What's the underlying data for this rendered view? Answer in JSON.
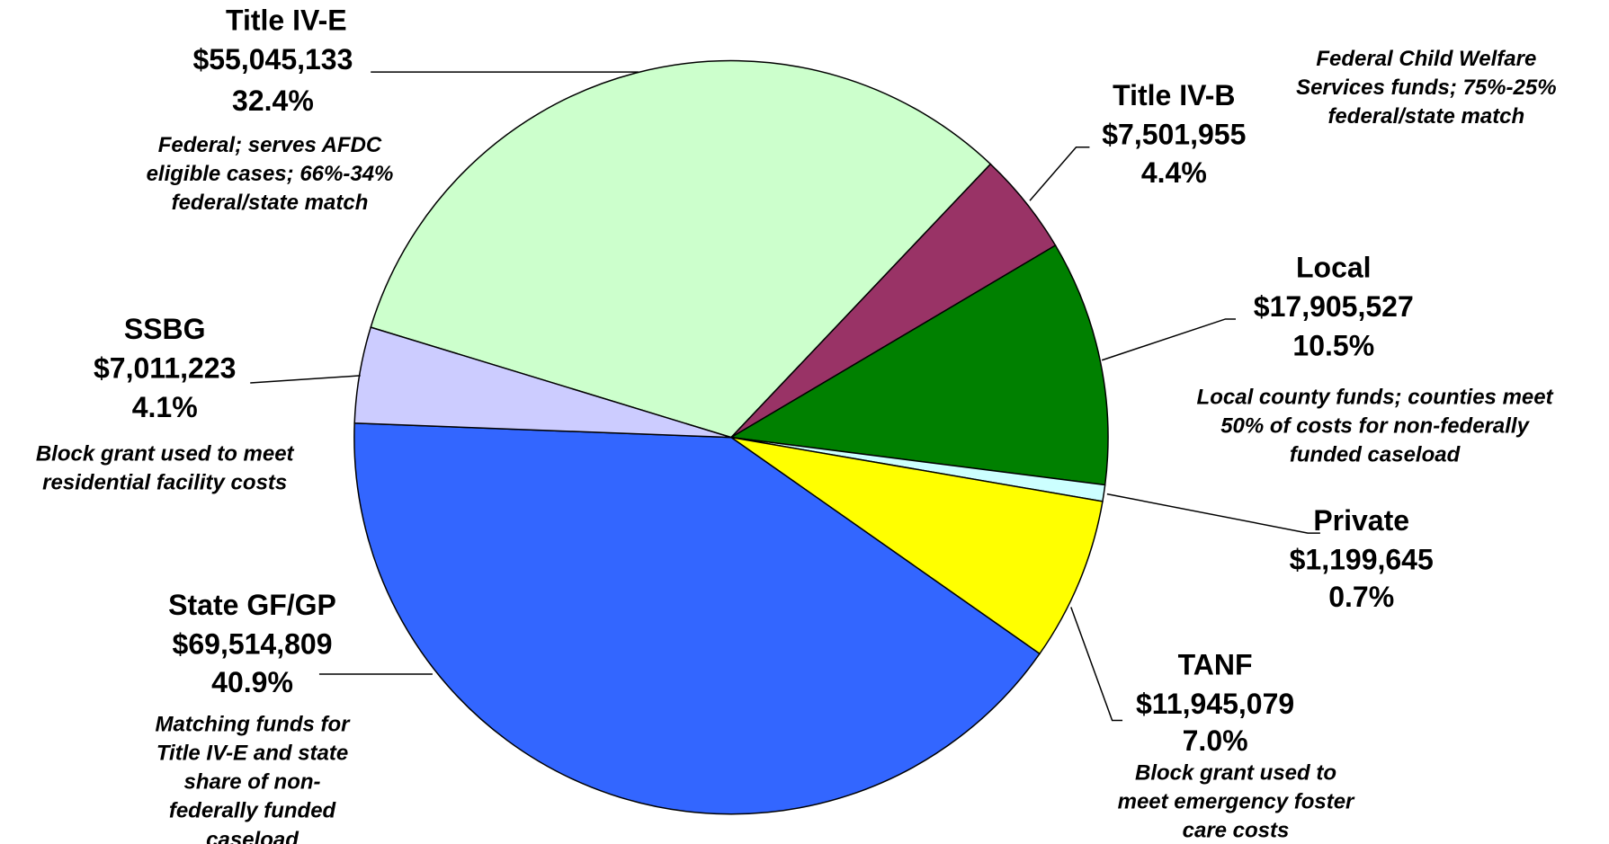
{
  "chart_data": {
    "type": "pie",
    "categories": [
      "Title IV-E",
      "Title IV-B",
      "Local",
      "Private",
      "TANF",
      "State GF/GP",
      "SSBG"
    ],
    "values": [
      55045133,
      7501955,
      17905527,
      1199645,
      11945079,
      69514809,
      7011223
    ],
    "value_labels": [
      "$55,045,133",
      "$7,501,955",
      "$17,905,527",
      "$1,199,645",
      "$11,945,079",
      "$69,514,809",
      "$7,011,223"
    ],
    "percent_labels": [
      "32.4%",
      "4.4%",
      "10.5%",
      "0.7%",
      "7.0%",
      "40.9%",
      "4.1%"
    ],
    "colors": [
      "#ccffcc",
      "#993366",
      "#008000",
      "#ccffff",
      "#ffff00",
      "#3366ff",
      "#ccccff"
    ],
    "descriptions": [
      [
        "Federal; serves AFDC",
        "eligible cases; 66%-34%",
        "federal/state match"
      ],
      [
        "Federal Child Welfare",
        "Services funds; 75%-25%",
        "federal/state match"
      ],
      [
        "Local county funds; counties meet",
        "50% of costs for non-federally",
        "funded caseload"
      ],
      [],
      [
        "Block grant used to",
        "meet emergency foster",
        "care costs"
      ],
      [
        "Matching funds for",
        "Title IV-E and state",
        "share of non-",
        "federally funded",
        "caseload"
      ],
      [
        "Block grant used to meet",
        "residential facility costs"
      ]
    ]
  }
}
